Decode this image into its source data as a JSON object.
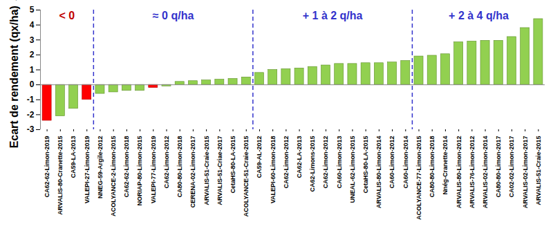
{
  "chart_data": {
    "type": "bar",
    "y_label": "Ecart de rendement (qx/ha)",
    "categories": [
      "CA62-62-Limon-2019",
      "ARVALIS-80-Cranette-2015",
      "CA59-LA-2013",
      "VALEPI-27-Limon-2019",
      "NNEG-59-Argile-2012",
      "ACOLYANCE-2-Limon-2015",
      "CA62-62-Limon-2018",
      "NORIAP-80-Limon-2015",
      "VALEPI-77-Limon-2019",
      "CA62-Limon-2012",
      "CA80-80-Limon-2018",
      "CERENA-02-Limon-2017",
      "ARVALIS-51-Craie-2015",
      "ARVALIS-51-Criae-2017",
      "CetaHS-80-LA-2015",
      "ACOLYANCE-51-Craie-2015",
      "CA59-AL-2012",
      "VALEPI-60-Limon-2018",
      "CA62-Limon-2012",
      "CA62-LA-2013",
      "CA62-Limons-2015",
      "CA62-Limon-2012",
      "CA60-Limon-2013",
      "UNEAL-62-Limon-2015",
      "CetaHS-80-LA-2015",
      "ARVALIS-80-Limon-2014",
      "CA60-Limon-2012",
      "CA60-Limon-2014",
      "ACOLYANCE-77-Limon-2015",
      "CA80-80-Limon-2018",
      "Nnég-Cranette-2014",
      "ARVALIS-80-Limon-2012",
      "ARVALIS-76-Limon-2012",
      "ARVALIS-02-Limon-2014",
      "CA80-80-Limon-2017",
      "CA02-02-Limon-2017",
      "ARVALIS-02-Limon-2017",
      "ARVALIS-51-Craie-2015"
    ],
    "values": [
      -2.4,
      -2.1,
      -1.6,
      -1.0,
      -0.6,
      -0.5,
      -0.4,
      -0.4,
      -0.2,
      -0.1,
      0.2,
      0.25,
      0.3,
      0.35,
      0.4,
      0.5,
      0.8,
      1.0,
      1.05,
      1.1,
      1.2,
      1.3,
      1.4,
      1.4,
      1.45,
      1.45,
      1.5,
      1.6,
      1.9,
      1.95,
      2.05,
      2.85,
      2.9,
      2.95,
      2.95,
      3.2,
      3.8,
      4.4
    ],
    "colors": [
      "#ff0000",
      "#92d050",
      "#92d050",
      "#ff0000",
      "#92d050",
      "#92d050",
      "#92d050",
      "#92d050",
      "#ff0000",
      "#92d050",
      "#92d050",
      "#92d050",
      "#92d050",
      "#92d050",
      "#92d050",
      "#92d050",
      "#92d050",
      "#92d050",
      "#92d050",
      "#92d050",
      "#92d050",
      "#92d050",
      "#92d050",
      "#92d050",
      "#92d050",
      "#92d050",
      "#92d050",
      "#92d050",
      "#92d050",
      "#92d050",
      "#92d050",
      "#92d050",
      "#92d050",
      "#92d050",
      "#92d050",
      "#92d050",
      "#92d050",
      "#92d050"
    ],
    "ylim": [
      -3,
      5
    ],
    "yticks": [
      -3,
      -2,
      -1,
      0,
      1,
      2,
      3,
      4,
      5
    ],
    "grid": false,
    "regions": [
      {
        "label": "< 0",
        "color": "#c00000",
        "first": 0,
        "last": 3
      },
      {
        "label": "≈ 0 q/ha",
        "color": "#3333cc",
        "first": 4,
        "last": 15
      },
      {
        "label": "+ 1 à 2 q/ha",
        "color": "#3333cc",
        "first": 16,
        "last": 27
      },
      {
        "label": "+ 2 à 4 q/ha",
        "color": "#3333cc",
        "first": 28,
        "last": 37
      }
    ]
  }
}
